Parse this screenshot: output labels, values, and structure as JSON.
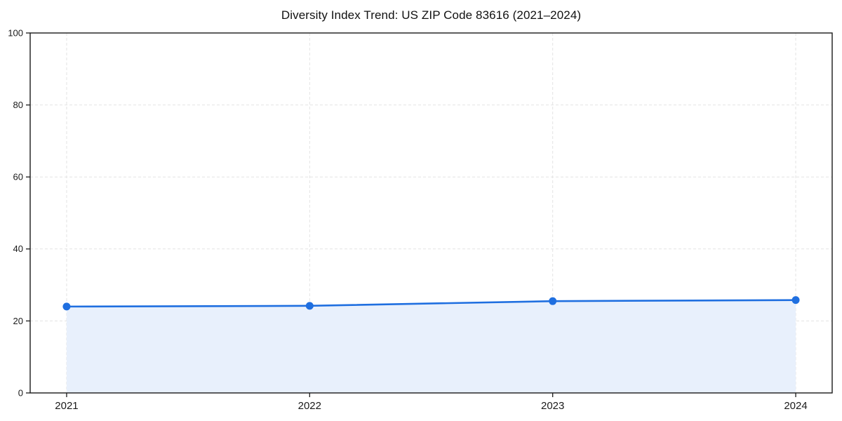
{
  "chart_data": {
    "type": "area",
    "title": "Diversity Index Trend: US ZIP Code 83616 (2021–2024)",
    "x": [
      2021,
      2022,
      2023,
      2024
    ],
    "x_tick_labels": [
      "2021",
      "2022",
      "2023",
      "2024"
    ],
    "values": [
      24.0,
      24.2,
      25.5,
      25.8
    ],
    "xlabel": "",
    "ylabel": "",
    "ylim": [
      0,
      100
    ],
    "yticks": [
      0,
      20,
      40,
      60,
      80,
      100
    ],
    "x_range": [
      2020.85,
      2024.15
    ],
    "grid": true,
    "grid_style": "dashed",
    "legend": false,
    "marker": "circle",
    "colors": {
      "line": "#1f6fe0",
      "marker": "#1f6fe0",
      "fill": "#e8f0fc",
      "grid": "#e3e3e3",
      "spine": "#1a1a1a",
      "tick_label": "#1a1a1a",
      "title": "#111111",
      "background": "#ffffff"
    }
  }
}
